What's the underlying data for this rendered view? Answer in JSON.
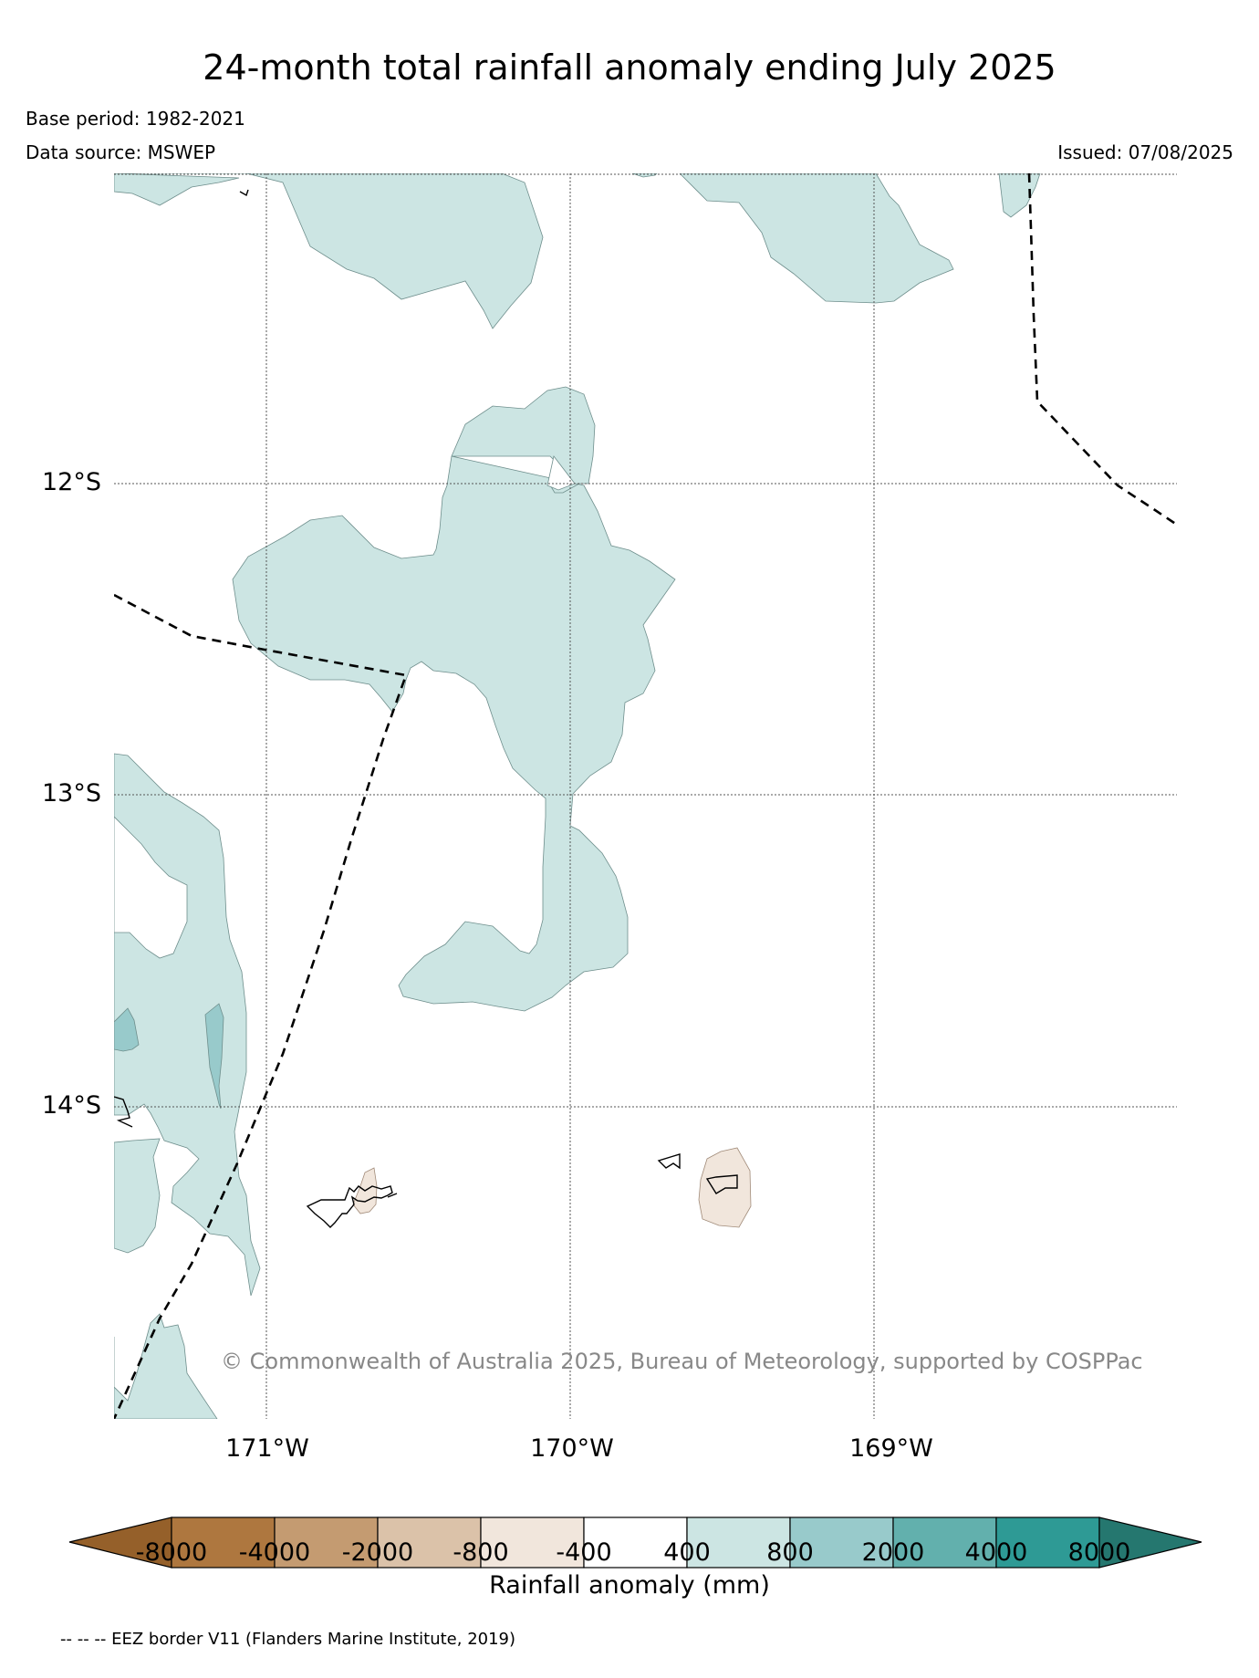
{
  "title": "24-month total rainfall anomaly ending July 2025",
  "base_period": "Base period: 1982-2021",
  "data_source": "Data source: MSWEP",
  "issued": "Issued: 07/08/2025",
  "map": {
    "latitudes": [
      "12°S",
      "13°S",
      "14°S"
    ],
    "longitudes": [
      "171°W",
      "170°W",
      "169°W"
    ],
    "copyright": "© Commonwealth of Australia 2025, Bureau of Meteorology, supported by COSPPac",
    "border_style": "dashed black line (EEZ border)",
    "colors": {
      "light_teal": "#cce5e3",
      "mid_teal": "#98cacb",
      "light_beige": "#f1e6dc",
      "coastline": "#000000"
    }
  },
  "colorbar": {
    "label": "Rainfall anomaly (mm)",
    "ticks": [
      "-8000",
      "-4000",
      "-2000",
      "-800",
      "-400",
      "400",
      "800",
      "2000",
      "4000",
      "8000"
    ],
    "colors": [
      "#95602a",
      "#ae773f",
      "#c49b71",
      "#dbc2a9",
      "#f1e6dc",
      "#ffffff",
      "#cce5e3",
      "#98cacb",
      "#62b0ad",
      "#2e9a95",
      "#25776f"
    ]
  },
  "footnote": "-- -- -- EEZ border V11 (Flanders Marine Institute, 2019)"
}
